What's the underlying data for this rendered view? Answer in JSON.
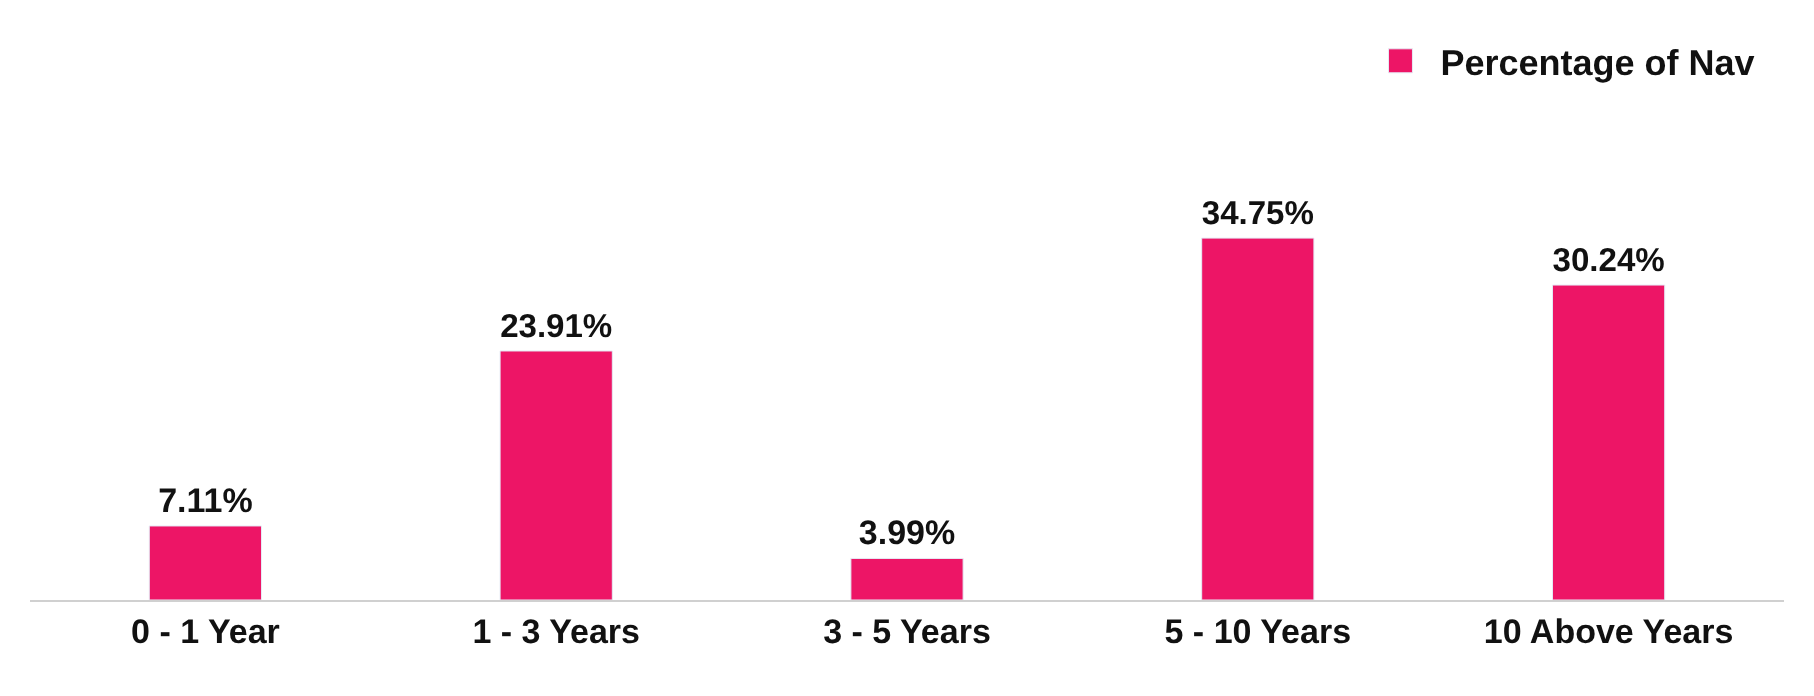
{
  "chart_data": {
    "type": "bar",
    "categories": [
      "0 - 1 Year",
      "1 - 3 Years",
      "3 - 5 Years",
      "5 - 10 Years",
      "10 Above Years"
    ],
    "series": [
      {
        "name": "Percentage of Nav",
        "color": "#ed1566",
        "values": [
          7.11,
          23.91,
          3.99,
          34.75,
          30.24
        ],
        "value_labels": [
          "7.11%",
          "23.91%",
          "3.99%",
          "34.75%",
          "30.24%"
        ]
      }
    ],
    "legend": "top right"
  }
}
